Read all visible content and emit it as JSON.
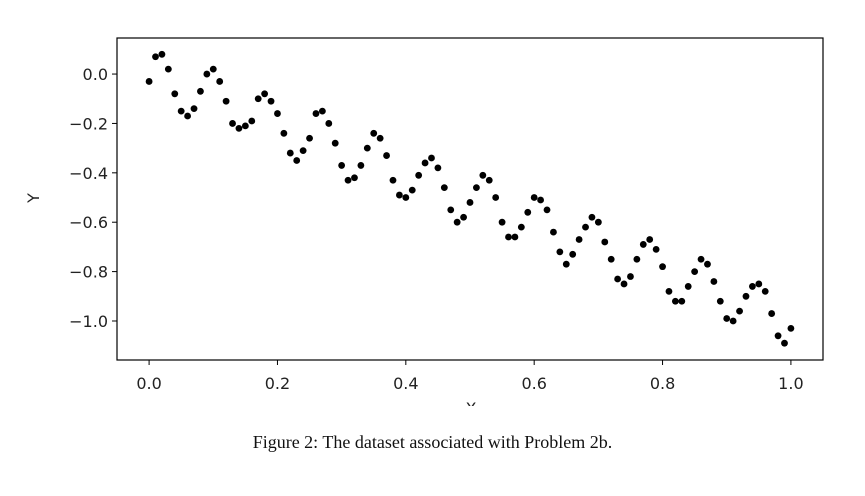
{
  "chart_data": {
    "type": "scatter",
    "xlabel": "X",
    "ylabel": "Y",
    "caption": "Figure 2: The dataset associated with Problem 2b.",
    "color": "#000000",
    "x": [
      0,
      0.01,
      0.02,
      0.03,
      0.04,
      0.05,
      0.06,
      0.07,
      0.08,
      0.09,
      0.1,
      0.11,
      0.12,
      0.13,
      0.14,
      0.15,
      0.16,
      0.17,
      0.18,
      0.19,
      0.2,
      0.21,
      0.22,
      0.23,
      0.24,
      0.25,
      0.26,
      0.27,
      0.28,
      0.29,
      0.3,
      0.31,
      0.32,
      0.33,
      0.34,
      0.35,
      0.36,
      0.37,
      0.38,
      0.39,
      0.4,
      0.41,
      0.42,
      0.43,
      0.44,
      0.45,
      0.46,
      0.47,
      0.48,
      0.49,
      0.5,
      0.51,
      0.52,
      0.53,
      0.54,
      0.55,
      0.56,
      0.57,
      0.58,
      0.59,
      0.6,
      0.61,
      0.62,
      0.63,
      0.64,
      0.65,
      0.66,
      0.67,
      0.68,
      0.69,
      0.7,
      0.71,
      0.72,
      0.73,
      0.74,
      0.75,
      0.76,
      0.77,
      0.78,
      0.79,
      0.8,
      0.81,
      0.82,
      0.83,
      0.84,
      0.85,
      0.86,
      0.87,
      0.88,
      0.89,
      0.9,
      0.91,
      0.92,
      0.93,
      0.94,
      0.95,
      0.96,
      0.97,
      0.98,
      0.99,
      1.0
    ],
    "values": [
      -0.03,
      0.07,
      0.08,
      0.02,
      -0.08,
      -0.15,
      -0.17,
      -0.14,
      -0.07,
      0.0,
      0.02,
      -0.03,
      -0.11,
      -0.2,
      -0.22,
      -0.21,
      -0.19,
      -0.1,
      -0.08,
      -0.11,
      -0.16,
      -0.24,
      -0.32,
      -0.35,
      -0.31,
      -0.26,
      -0.16,
      -0.15,
      -0.2,
      -0.28,
      -0.37,
      -0.43,
      -0.42,
      -0.37,
      -0.3,
      -0.24,
      -0.26,
      -0.33,
      -0.43,
      -0.49,
      -0.5,
      -0.47,
      -0.41,
      -0.36,
      -0.34,
      -0.38,
      -0.46,
      -0.55,
      -0.6,
      -0.58,
      -0.52,
      -0.46,
      -0.41,
      -0.43,
      -0.5,
      -0.6,
      -0.66,
      -0.66,
      -0.62,
      -0.56,
      -0.5,
      -0.51,
      -0.55,
      -0.64,
      -0.72,
      -0.77,
      -0.73,
      -0.67,
      -0.62,
      -0.58,
      -0.6,
      -0.68,
      -0.75,
      -0.83,
      -0.85,
      -0.82,
      -0.75,
      -0.69,
      -0.67,
      -0.71,
      -0.78,
      -0.88,
      -0.92,
      -0.92,
      -0.86,
      -0.8,
      -0.75,
      -0.77,
      -0.84,
      -0.92,
      -0.99,
      -1.0,
      -0.96,
      -0.9,
      -0.86,
      -0.85,
      -0.88,
      -0.97,
      -1.06,
      -1.09,
      -1.03
    ],
    "xlim": [
      -0.05,
      1.05
    ],
    "ylim": [
      -1.158,
      0.146
    ],
    "xticks": [
      {
        "value": 0,
        "label": "0.0"
      },
      {
        "value": 0.2,
        "label": "0.2"
      },
      {
        "value": 0.4,
        "label": "0.4"
      },
      {
        "value": 0.6,
        "label": "0.6"
      },
      {
        "value": 0.8,
        "label": "0.8"
      },
      {
        "value": 1,
        "label": "1.0"
      }
    ],
    "yticks": [
      {
        "value": 0,
        "label": "0.0"
      },
      {
        "value": -0.2,
        "label": "−0.2"
      },
      {
        "value": -0.4,
        "label": "−0.4"
      },
      {
        "value": -0.6,
        "label": "−0.6"
      },
      {
        "value": -0.8,
        "label": "−0.8"
      },
      {
        "value": -1,
        "label": "−1.0"
      }
    ]
  }
}
